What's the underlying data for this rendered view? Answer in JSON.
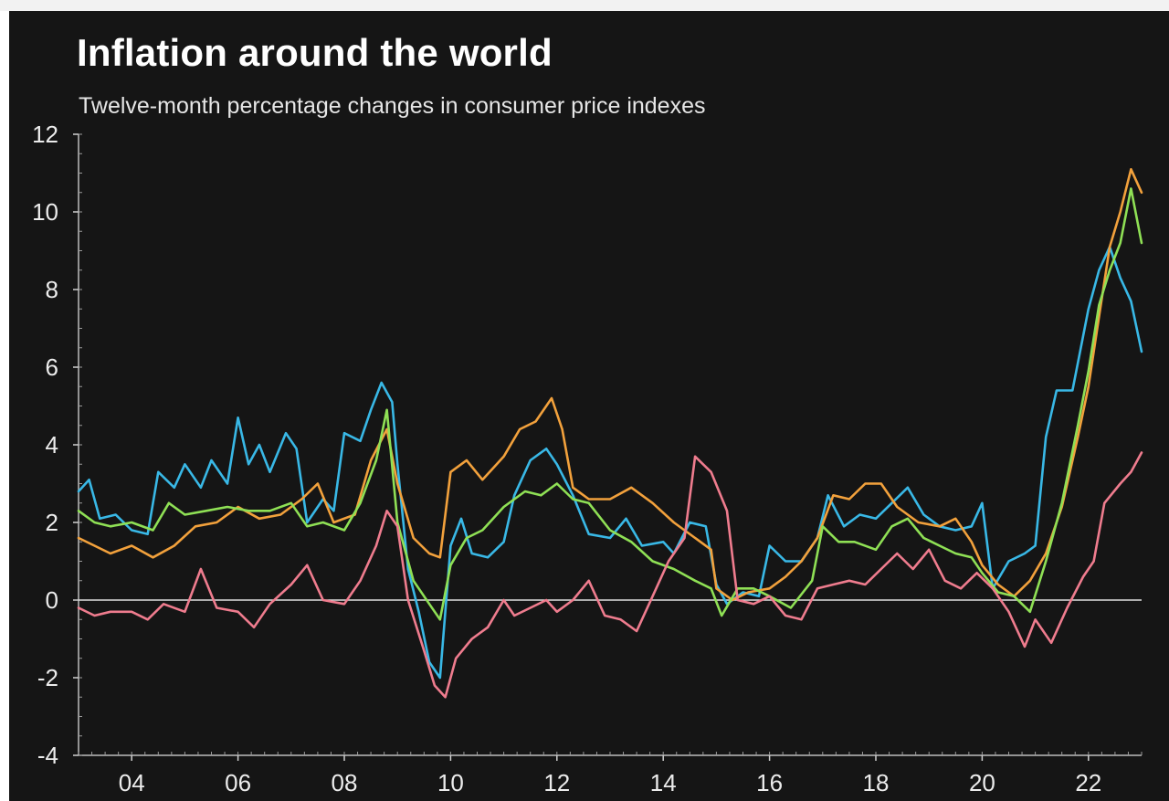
{
  "chart_data": {
    "type": "line",
    "title": "Inflation around the world",
    "subtitle": "Twelve-month percentage changes in consumer price indexes",
    "xlabel": "",
    "ylabel": "",
    "xlim": [
      2003.0,
      2023.0
    ],
    "ylim": [
      -4,
      12
    ],
    "yticks": [
      -4,
      -2,
      0,
      2,
      4,
      6,
      8,
      10,
      12
    ],
    "xticks": [
      {
        "value": 2004,
        "label": "04"
      },
      {
        "value": 2006,
        "label": "06"
      },
      {
        "value": 2008,
        "label": "08"
      },
      {
        "value": 2010,
        "label": "10"
      },
      {
        "value": 2012,
        "label": "12"
      },
      {
        "value": 2014,
        "label": "14"
      },
      {
        "value": 2016,
        "label": "16"
      },
      {
        "value": 2018,
        "label": "18"
      },
      {
        "value": 2020,
        "label": "20"
      },
      {
        "value": 2022,
        "label": "22"
      }
    ],
    "zero_line": true,
    "grid": false,
    "legend": "none",
    "series": [
      {
        "color": "#39b8e6",
        "points": [
          [
            2003.0,
            2.8
          ],
          [
            2003.2,
            3.1
          ],
          [
            2003.4,
            2.1
          ],
          [
            2003.7,
            2.2
          ],
          [
            2004.0,
            1.8
          ],
          [
            2004.3,
            1.7
          ],
          [
            2004.5,
            3.3
          ],
          [
            2004.8,
            2.9
          ],
          [
            2005.0,
            3.5
          ],
          [
            2005.3,
            2.9
          ],
          [
            2005.5,
            3.6
          ],
          [
            2005.8,
            3.0
          ],
          [
            2006.0,
            4.7
          ],
          [
            2006.2,
            3.5
          ],
          [
            2006.4,
            4.0
          ],
          [
            2006.6,
            3.3
          ],
          [
            2006.9,
            4.3
          ],
          [
            2007.1,
            3.9
          ],
          [
            2007.3,
            2.0
          ],
          [
            2007.6,
            2.6
          ],
          [
            2007.8,
            2.3
          ],
          [
            2008.0,
            4.3
          ],
          [
            2008.3,
            4.1
          ],
          [
            2008.5,
            4.9
          ],
          [
            2008.7,
            5.6
          ],
          [
            2008.9,
            5.1
          ],
          [
            2009.0,
            3.5
          ],
          [
            2009.2,
            0.8
          ],
          [
            2009.4,
            -0.3
          ],
          [
            2009.6,
            -1.6
          ],
          [
            2009.8,
            -2.0
          ],
          [
            2010.0,
            1.4
          ],
          [
            2010.2,
            2.1
          ],
          [
            2010.4,
            1.2
          ],
          [
            2010.7,
            1.1
          ],
          [
            2011.0,
            1.5
          ],
          [
            2011.2,
            2.7
          ],
          [
            2011.5,
            3.6
          ],
          [
            2011.8,
            3.9
          ],
          [
            2012.0,
            3.5
          ],
          [
            2012.3,
            2.7
          ],
          [
            2012.6,
            1.7
          ],
          [
            2013.0,
            1.6
          ],
          [
            2013.3,
            2.1
          ],
          [
            2013.6,
            1.4
          ],
          [
            2014.0,
            1.5
          ],
          [
            2014.2,
            1.2
          ],
          [
            2014.5,
            2.0
          ],
          [
            2014.8,
            1.9
          ],
          [
            2015.0,
            0.4
          ],
          [
            2015.2,
            -0.1
          ],
          [
            2015.5,
            0.2
          ],
          [
            2015.8,
            0.1
          ],
          [
            2016.0,
            1.4
          ],
          [
            2016.3,
            1.0
          ],
          [
            2016.6,
            1.0
          ],
          [
            2016.9,
            1.6
          ],
          [
            2017.1,
            2.7
          ],
          [
            2017.4,
            1.9
          ],
          [
            2017.7,
            2.2
          ],
          [
            2018.0,
            2.1
          ],
          [
            2018.3,
            2.5
          ],
          [
            2018.6,
            2.9
          ],
          [
            2018.9,
            2.2
          ],
          [
            2019.2,
            1.9
          ],
          [
            2019.5,
            1.8
          ],
          [
            2019.8,
            1.9
          ],
          [
            2020.0,
            2.5
          ],
          [
            2020.2,
            0.3
          ],
          [
            2020.5,
            1.0
          ],
          [
            2020.8,
            1.2
          ],
          [
            2021.0,
            1.4
          ],
          [
            2021.2,
            4.2
          ],
          [
            2021.4,
            5.4
          ],
          [
            2021.7,
            5.4
          ],
          [
            2022.0,
            7.5
          ],
          [
            2022.2,
            8.5
          ],
          [
            2022.4,
            9.1
          ],
          [
            2022.6,
            8.3
          ],
          [
            2022.8,
            7.7
          ],
          [
            2023.0,
            6.4
          ]
        ]
      },
      {
        "color": "#f2a13c",
        "points": [
          [
            2003.0,
            1.6
          ],
          [
            2003.3,
            1.4
          ],
          [
            2003.6,
            1.2
          ],
          [
            2004.0,
            1.4
          ],
          [
            2004.4,
            1.1
          ],
          [
            2004.8,
            1.4
          ],
          [
            2005.2,
            1.9
          ],
          [
            2005.6,
            2.0
          ],
          [
            2006.0,
            2.4
          ],
          [
            2006.4,
            2.1
          ],
          [
            2006.8,
            2.2
          ],
          [
            2007.2,
            2.6
          ],
          [
            2007.5,
            3.0
          ],
          [
            2007.8,
            2.0
          ],
          [
            2008.2,
            2.2
          ],
          [
            2008.5,
            3.6
          ],
          [
            2008.8,
            4.4
          ],
          [
            2009.0,
            3.0
          ],
          [
            2009.3,
            1.6
          ],
          [
            2009.6,
            1.2
          ],
          [
            2009.8,
            1.1
          ],
          [
            2010.0,
            3.3
          ],
          [
            2010.3,
            3.6
          ],
          [
            2010.6,
            3.1
          ],
          [
            2011.0,
            3.7
          ],
          [
            2011.3,
            4.4
          ],
          [
            2011.6,
            4.6
          ],
          [
            2011.9,
            5.2
          ],
          [
            2012.1,
            4.4
          ],
          [
            2012.3,
            2.9
          ],
          [
            2012.6,
            2.6
          ],
          [
            2013.0,
            2.6
          ],
          [
            2013.4,
            2.9
          ],
          [
            2013.8,
            2.5
          ],
          [
            2014.2,
            2.0
          ],
          [
            2014.6,
            1.6
          ],
          [
            2014.9,
            1.3
          ],
          [
            2015.0,
            0.3
          ],
          [
            2015.3,
            0.0
          ],
          [
            2015.6,
            0.2
          ],
          [
            2016.0,
            0.3
          ],
          [
            2016.3,
            0.6
          ],
          [
            2016.6,
            1.0
          ],
          [
            2016.9,
            1.6
          ],
          [
            2017.2,
            2.7
          ],
          [
            2017.5,
            2.6
          ],
          [
            2017.8,
            3.0
          ],
          [
            2018.1,
            3.0
          ],
          [
            2018.4,
            2.4
          ],
          [
            2018.8,
            2.0
          ],
          [
            2019.2,
            1.9
          ],
          [
            2019.5,
            2.1
          ],
          [
            2019.8,
            1.5
          ],
          [
            2020.0,
            0.9
          ],
          [
            2020.3,
            0.4
          ],
          [
            2020.6,
            0.1
          ],
          [
            2020.9,
            0.5
          ],
          [
            2021.2,
            1.2
          ],
          [
            2021.5,
            2.4
          ],
          [
            2021.8,
            4.2
          ],
          [
            2022.0,
            5.5
          ],
          [
            2022.2,
            7.3
          ],
          [
            2022.4,
            9.1
          ],
          [
            2022.6,
            10.0
          ],
          [
            2022.8,
            11.1
          ],
          [
            2023.0,
            10.5
          ]
        ]
      },
      {
        "color": "#8fe055",
        "points": [
          [
            2003.0,
            2.3
          ],
          [
            2003.3,
            2.0
          ],
          [
            2003.6,
            1.9
          ],
          [
            2004.0,
            2.0
          ],
          [
            2004.4,
            1.8
          ],
          [
            2004.7,
            2.5
          ],
          [
            2005.0,
            2.2
          ],
          [
            2005.4,
            2.3
          ],
          [
            2005.8,
            2.4
          ],
          [
            2006.2,
            2.3
          ],
          [
            2006.6,
            2.3
          ],
          [
            2007.0,
            2.5
          ],
          [
            2007.3,
            1.9
          ],
          [
            2007.6,
            2.0
          ],
          [
            2008.0,
            1.8
          ],
          [
            2008.3,
            2.5
          ],
          [
            2008.6,
            3.6
          ],
          [
            2008.8,
            4.9
          ],
          [
            2009.0,
            2.0
          ],
          [
            2009.3,
            0.5
          ],
          [
            2009.6,
            -0.1
          ],
          [
            2009.8,
            -0.5
          ],
          [
            2010.0,
            0.9
          ],
          [
            2010.3,
            1.6
          ],
          [
            2010.6,
            1.8
          ],
          [
            2011.0,
            2.4
          ],
          [
            2011.4,
            2.8
          ],
          [
            2011.7,
            2.7
          ],
          [
            2012.0,
            3.0
          ],
          [
            2012.3,
            2.6
          ],
          [
            2012.6,
            2.5
          ],
          [
            2013.0,
            1.8
          ],
          [
            2013.4,
            1.5
          ],
          [
            2013.8,
            1.0
          ],
          [
            2014.2,
            0.8
          ],
          [
            2014.6,
            0.5
          ],
          [
            2014.9,
            0.3
          ],
          [
            2015.1,
            -0.4
          ],
          [
            2015.4,
            0.3
          ],
          [
            2015.7,
            0.3
          ],
          [
            2016.0,
            0.1
          ],
          [
            2016.4,
            -0.2
          ],
          [
            2016.8,
            0.5
          ],
          [
            2017.0,
            1.9
          ],
          [
            2017.3,
            1.5
          ],
          [
            2017.6,
            1.5
          ],
          [
            2018.0,
            1.3
          ],
          [
            2018.3,
            1.9
          ],
          [
            2018.6,
            2.1
          ],
          [
            2018.9,
            1.6
          ],
          [
            2019.2,
            1.4
          ],
          [
            2019.5,
            1.2
          ],
          [
            2019.8,
            1.1
          ],
          [
            2020.0,
            0.7
          ],
          [
            2020.3,
            0.2
          ],
          [
            2020.6,
            0.1
          ],
          [
            2020.9,
            -0.3
          ],
          [
            2021.2,
            1.0
          ],
          [
            2021.5,
            2.5
          ],
          [
            2021.8,
            4.5
          ],
          [
            2022.0,
            5.9
          ],
          [
            2022.2,
            7.6
          ],
          [
            2022.4,
            8.5
          ],
          [
            2022.6,
            9.2
          ],
          [
            2022.8,
            10.6
          ],
          [
            2023.0,
            9.2
          ]
        ]
      },
      {
        "color": "#ef7c8e",
        "points": [
          [
            2003.0,
            -0.2
          ],
          [
            2003.3,
            -0.4
          ],
          [
            2003.6,
            -0.3
          ],
          [
            2004.0,
            -0.3
          ],
          [
            2004.3,
            -0.5
          ],
          [
            2004.6,
            -0.1
          ],
          [
            2005.0,
            -0.3
          ],
          [
            2005.3,
            0.8
          ],
          [
            2005.6,
            -0.2
          ],
          [
            2006.0,
            -0.3
          ],
          [
            2006.3,
            -0.7
          ],
          [
            2006.6,
            -0.1
          ],
          [
            2007.0,
            0.4
          ],
          [
            2007.3,
            0.9
          ],
          [
            2007.6,
            0.0
          ],
          [
            2008.0,
            -0.1
          ],
          [
            2008.3,
            0.5
          ],
          [
            2008.6,
            1.4
          ],
          [
            2008.8,
            2.3
          ],
          [
            2009.0,
            1.9
          ],
          [
            2009.2,
            0.0
          ],
          [
            2009.5,
            -1.3
          ],
          [
            2009.7,
            -2.2
          ],
          [
            2009.9,
            -2.5
          ],
          [
            2010.1,
            -1.5
          ],
          [
            2010.4,
            -1.0
          ],
          [
            2010.7,
            -0.7
          ],
          [
            2011.0,
            0.0
          ],
          [
            2011.2,
            -0.4
          ],
          [
            2011.5,
            -0.2
          ],
          [
            2011.8,
            0.0
          ],
          [
            2012.0,
            -0.3
          ],
          [
            2012.3,
            0.0
          ],
          [
            2012.6,
            0.5
          ],
          [
            2012.9,
            -0.4
          ],
          [
            2013.2,
            -0.5
          ],
          [
            2013.5,
            -0.8
          ],
          [
            2013.8,
            0.1
          ],
          [
            2014.1,
            1.0
          ],
          [
            2014.4,
            1.6
          ],
          [
            2014.6,
            3.7
          ],
          [
            2014.9,
            3.3
          ],
          [
            2015.2,
            2.3
          ],
          [
            2015.4,
            0.0
          ],
          [
            2015.7,
            -0.1
          ],
          [
            2016.0,
            0.1
          ],
          [
            2016.3,
            -0.4
          ],
          [
            2016.6,
            -0.5
          ],
          [
            2016.9,
            0.3
          ],
          [
            2017.2,
            0.4
          ],
          [
            2017.5,
            0.5
          ],
          [
            2017.8,
            0.4
          ],
          [
            2018.1,
            0.8
          ],
          [
            2018.4,
            1.2
          ],
          [
            2018.7,
            0.8
          ],
          [
            2019.0,
            1.3
          ],
          [
            2019.3,
            0.5
          ],
          [
            2019.6,
            0.3
          ],
          [
            2019.9,
            0.7
          ],
          [
            2020.2,
            0.3
          ],
          [
            2020.5,
            -0.3
          ],
          [
            2020.8,
            -1.2
          ],
          [
            2021.0,
            -0.5
          ],
          [
            2021.3,
            -1.1
          ],
          [
            2021.6,
            -0.2
          ],
          [
            2021.9,
            0.6
          ],
          [
            2022.1,
            1.0
          ],
          [
            2022.3,
            2.5
          ],
          [
            2022.6,
            3.0
          ],
          [
            2022.8,
            3.3
          ],
          [
            2023.0,
            3.8
          ]
        ]
      }
    ]
  }
}
